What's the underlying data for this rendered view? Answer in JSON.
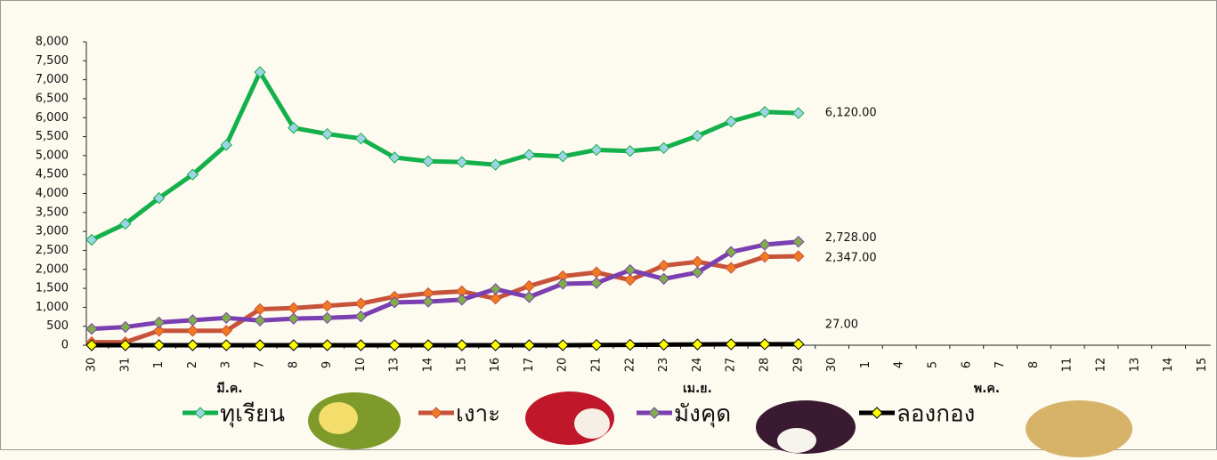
{
  "chart_data": {
    "type": "line",
    "categories": [
      "30",
      "31",
      "1",
      "2",
      "3",
      "7",
      "8",
      "9",
      "10",
      "13",
      "14",
      "15",
      "16",
      "17",
      "20",
      "21",
      "22",
      "23",
      "24",
      "27",
      "28",
      "29",
      "30",
      "1",
      "4",
      "5",
      "6",
      "7",
      "8",
      "11",
      "12",
      "13",
      "14",
      "15"
    ],
    "groups": [
      "มี.ค.",
      "เม.ย.",
      "พ.ค."
    ],
    "ylim": [
      0,
      8000
    ],
    "yticks": [
      0,
      500,
      {
        "value": 1000,
        "label": "1,000"
      },
      {
        "value": 1500,
        "label": "1,500"
      },
      {
        "value": 2000,
        "label": "2,000"
      },
      {
        "value": 2500,
        "label": "2,500"
      },
      {
        "value": 3000,
        "label": "3,000"
      },
      {
        "value": 3500,
        "label": "3,500"
      },
      {
        "value": 4000,
        "label": "4,000"
      },
      {
        "value": 4500,
        "label": "4,500"
      },
      {
        "value": 5000,
        "label": "5,000"
      },
      {
        "value": 5500,
        "label": "5,500"
      },
      {
        "value": 6000,
        "label": "6,000"
      },
      {
        "value": 6500,
        "label": "6,500"
      },
      {
        "value": 7000,
        "label": "7,000"
      },
      {
        "value": 7500,
        "label": "7,500"
      },
      {
        "value": 8000,
        "label": "8,000"
      }
    ],
    "series": [
      {
        "name": "ทุเรียน",
        "color": "#13b04b",
        "marker_color": "#9fd3e6",
        "label_color": "#13b04b",
        "values": [
          2780,
          3200,
          3880,
          4500,
          5280,
          7200,
          5730,
          5570,
          5450,
          4950,
          4850,
          4830,
          4760,
          5020,
          4980,
          5150,
          5120,
          5200,
          5520,
          5900,
          6150,
          6120,
          null,
          null,
          null,
          null,
          null,
          null,
          null,
          null,
          null,
          null,
          null,
          null
        ],
        "value_labels": [
          null,
          null,
          null,
          null,
          null,
          null,
          null,
          null,
          null,
          null,
          null,
          null,
          null,
          null,
          null,
          null,
          null,
          null,
          null,
          null,
          null,
          "6,120.00",
          null,
          null,
          null,
          null,
          null,
          null,
          null,
          null,
          null,
          null,
          null,
          null
        ]
      },
      {
        "name": "เงาะ",
        "color": "#c6533a",
        "marker_color": "#f07a22",
        "label_color": "#e8202a",
        "values": [
          80,
          80,
          380,
          380,
          380,
          950,
          980,
          1040,
          1100,
          1280,
          1370,
          1420,
          1230,
          1560,
          1820,
          1920,
          1720,
          2100,
          2200,
          2040,
          2330,
          2347,
          null,
          null,
          null,
          null,
          null,
          null,
          null,
          null,
          null,
          null,
          null,
          null
        ],
        "value_labels": [
          null,
          null,
          null,
          null,
          null,
          null,
          null,
          null,
          null,
          null,
          null,
          null,
          null,
          null,
          null,
          null,
          null,
          null,
          null,
          null,
          null,
          "2,347.00",
          null,
          null,
          null,
          null,
          null,
          null,
          null,
          null,
          null,
          null,
          null,
          null
        ]
      },
      {
        "name": "มังคุด",
        "color": "#7a3fb0",
        "marker_color": "#7fae4a",
        "label_color": "#1f3b78",
        "values": [
          430,
          480,
          600,
          660,
          720,
          650,
          700,
          720,
          760,
          1130,
          1150,
          1200,
          1480,
          1270,
          1620,
          1640,
          1980,
          1750,
          1920,
          2460,
          2650,
          2728,
          null,
          null,
          null,
          null,
          null,
          null,
          null,
          null,
          null,
          null,
          null,
          null
        ],
        "value_labels": [
          null,
          null,
          null,
          null,
          null,
          null,
          null,
          null,
          null,
          null,
          null,
          null,
          null,
          null,
          null,
          null,
          null,
          null,
          null,
          null,
          null,
          "2,728.00",
          null,
          null,
          null,
          null,
          null,
          null,
          null,
          null,
          null,
          null,
          null,
          null
        ]
      },
      {
        "name": "ลองกอง",
        "color": "#000000",
        "marker_color": "#ffff00",
        "label_color": "#222222",
        "values": [
          0,
          0,
          0,
          0,
          0,
          0,
          0,
          0,
          0,
          0,
          0,
          0,
          0,
          0,
          0,
          5,
          10,
          15,
          20,
          25,
          27,
          27,
          null,
          null,
          null,
          null,
          null,
          null,
          null,
          null,
          null,
          null,
          null,
          null
        ],
        "value_labels": [
          null,
          null,
          null,
          null,
          null,
          null,
          null,
          null,
          null,
          null,
          null,
          null,
          null,
          null,
          null,
          null,
          null,
          null,
          null,
          null,
          null,
          "27.00",
          null,
          null,
          null,
          null,
          null,
          null,
          null,
          null,
          null,
          null,
          null,
          null
        ]
      }
    ]
  }
}
